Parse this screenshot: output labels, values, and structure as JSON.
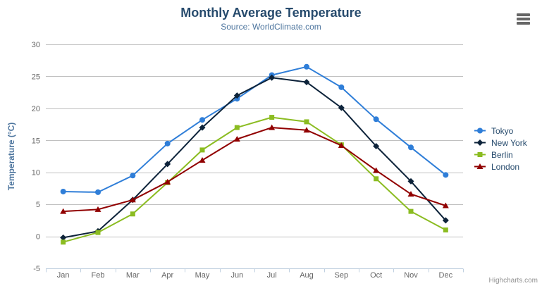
{
  "chart": {
    "title": "Monthly Average Temperature",
    "subtitle": "Source: WorldClimate.com"
  },
  "export_menu": {
    "icon": "hamburger"
  },
  "credits": {
    "label": "Highcharts.com"
  },
  "chart_data": {
    "type": "line",
    "title": "Monthly Average Temperature",
    "subtitle": "Source: WorldClimate.com",
    "xlabel": "",
    "ylabel": "Temperature (°C)",
    "ylim": [
      -5,
      30
    ],
    "ytick_interval": 5,
    "grid": true,
    "legend_position": "right-middle",
    "categories": [
      "Jan",
      "Feb",
      "Mar",
      "Apr",
      "May",
      "Jun",
      "Jul",
      "Aug",
      "Sep",
      "Oct",
      "Nov",
      "Dec"
    ],
    "series": [
      {
        "name": "Tokyo",
        "color": "#2f7ed8",
        "marker": "circle",
        "values": [
          7.0,
          6.9,
          9.5,
          14.5,
          18.2,
          21.5,
          25.2,
          26.5,
          23.3,
          18.3,
          13.9,
          9.6
        ]
      },
      {
        "name": "New York",
        "color": "#0d233a",
        "marker": "diamond",
        "values": [
          -0.2,
          0.8,
          5.7,
          11.3,
          17.0,
          22.0,
          24.8,
          24.1,
          20.1,
          14.1,
          8.6,
          2.5
        ]
      },
      {
        "name": "Berlin",
        "color": "#8bbc21",
        "marker": "square",
        "values": [
          -0.9,
          0.6,
          3.5,
          8.4,
          13.5,
          17.0,
          18.6,
          17.9,
          14.3,
          9.0,
          3.9,
          1.0
        ]
      },
      {
        "name": "London",
        "color": "#910000",
        "marker": "triangle",
        "values": [
          3.9,
          4.2,
          5.7,
          8.5,
          11.9,
          15.2,
          17.0,
          16.6,
          14.2,
          10.3,
          6.6,
          4.8
        ]
      }
    ],
    "colors": {
      "grid": "#C0C0C0",
      "axis_line": "#C0D0E0",
      "tick_label": "#666666",
      "axis_title": "#4d759e",
      "title": "#274b6d",
      "subtitle": "#4d759e",
      "legend_text": "#274b6d"
    }
  }
}
